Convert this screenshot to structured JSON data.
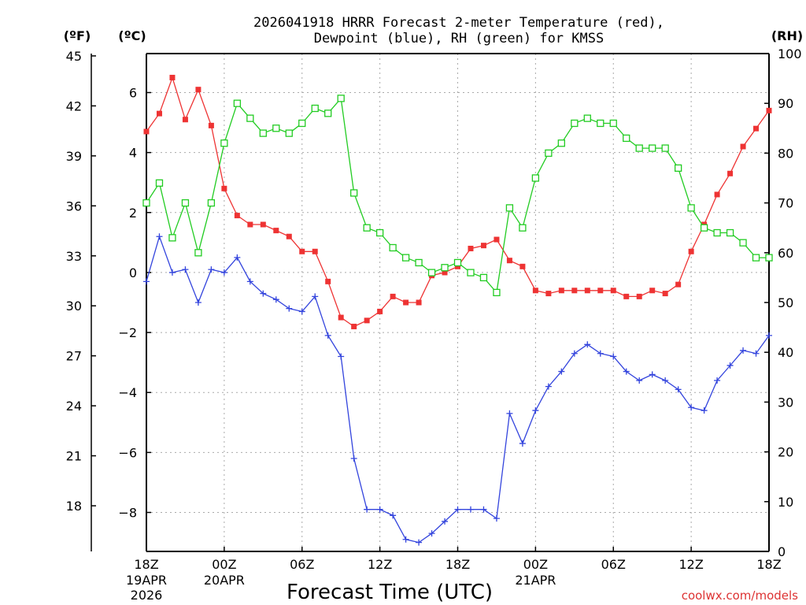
{
  "chart_data": {
    "type": "line",
    "title_line1": "2026041918 HRRR Forecast 2-meter Temperature (red),",
    "title_line2": "Dewpoint (blue), RH (green) for KMSS",
    "xlabel": "Forecast Time (UTC)",
    "watermark": "coolwx.com/models",
    "unit_f": "(ºF)",
    "unit_c": "(ºC)",
    "unit_rh": "(RH)",
    "celsius_range": [
      -9.3,
      7.3
    ],
    "rh_range": [
      0,
      100
    ],
    "celsius_ticks": [
      "6",
      "4",
      "2",
      "0",
      "−2",
      "−4",
      "−6",
      "−8"
    ],
    "celsius_tick_values": [
      6,
      4,
      2,
      0,
      -2,
      -4,
      -6,
      -8
    ],
    "fahrenheit_ticks": [
      "45",
      "42",
      "39",
      "36",
      "33",
      "30",
      "27",
      "24",
      "21",
      "18"
    ],
    "fahrenheit_tick_values": [
      45,
      42,
      39,
      36,
      33,
      30,
      27,
      24,
      21,
      18
    ],
    "rh_ticks": [
      "100",
      "90",
      "80",
      "70",
      "60",
      "50",
      "40",
      "30",
      "20",
      "10",
      "0"
    ],
    "rh_tick_values": [
      100,
      90,
      80,
      70,
      60,
      50,
      40,
      30,
      20,
      10,
      0
    ],
    "x_ticks": [
      {
        "hour": 0,
        "label": "18Z",
        "sub1": "19APR",
        "sub2": "2026"
      },
      {
        "hour": 6,
        "label": "00Z",
        "sub1": "20APR",
        "sub2": ""
      },
      {
        "hour": 12,
        "label": "06Z",
        "sub1": "",
        "sub2": ""
      },
      {
        "hour": 18,
        "label": "12Z",
        "sub1": "",
        "sub2": ""
      },
      {
        "hour": 24,
        "label": "18Z",
        "sub1": "",
        "sub2": ""
      },
      {
        "hour": 30,
        "label": "00Z",
        "sub1": "21APR",
        "sub2": ""
      },
      {
        "hour": 36,
        "label": "06Z",
        "sub1": "",
        "sub2": ""
      },
      {
        "hour": 42,
        "label": "12Z",
        "sub1": "",
        "sub2": ""
      },
      {
        "hour": 48,
        "label": "18Z",
        "sub1": "",
        "sub2": ""
      }
    ],
    "x_range_hours": [
      0,
      48
    ],
    "series": [
      {
        "name": "Temperature",
        "units": "C",
        "color": "#ee3333",
        "marker": "filled-square",
        "values": [
          4.7,
          5.3,
          6.5,
          5.1,
          6.1,
          4.9,
          2.8,
          1.9,
          1.6,
          1.6,
          1.4,
          1.2,
          0.7,
          0.7,
          -0.3,
          -1.5,
          -1.8,
          -1.6,
          -1.3,
          -0.8,
          -1.0,
          -1.0,
          -0.1,
          0.0,
          0.2,
          0.8,
          0.9,
          1.1,
          0.4,
          0.2,
          -0.6,
          -0.7,
          -0.6,
          -0.6,
          -0.6,
          -0.6,
          -0.6,
          -0.8,
          -0.8,
          -0.6,
          -0.7,
          -0.4,
          0.7,
          1.6,
          2.6,
          3.3,
          4.2,
          4.8,
          5.4
        ]
      },
      {
        "name": "Dewpoint",
        "units": "C",
        "color": "#3344dd",
        "marker": "plus",
        "values": [
          -0.3,
          1.2,
          0.0,
          0.1,
          -1.0,
          0.1,
          0.0,
          0.5,
          -0.3,
          -0.7,
          -0.9,
          -1.2,
          -1.3,
          -0.8,
          -2.1,
          -2.8,
          -6.2,
          -7.9,
          -7.9,
          -8.1,
          -8.9,
          -9.0,
          -8.7,
          -8.3,
          -7.9,
          -7.9,
          -7.9,
          -8.2,
          -4.7,
          -5.7,
          -4.6,
          -3.8,
          -3.3,
          -2.7,
          -2.4,
          -2.7,
          -2.8,
          -3.3,
          -3.6,
          -3.4,
          -3.6,
          -3.9,
          -4.5,
          -4.6,
          -3.6,
          -3.1,
          -2.6,
          -2.7,
          -2.1
        ]
      },
      {
        "name": "RH",
        "units": "%",
        "color": "#22cc22",
        "marker": "open-square",
        "values": [
          70,
          74,
          63,
          70,
          60,
          70,
          82,
          90,
          87,
          84,
          85,
          84,
          86,
          89,
          88,
          91,
          72,
          65,
          64,
          61,
          59,
          58,
          56,
          57,
          58,
          56,
          55,
          52,
          69,
          65,
          75,
          80,
          82,
          86,
          87,
          86,
          86,
          83,
          81,
          81,
          81,
          77,
          69,
          65,
          64,
          64,
          62,
          59,
          59
        ]
      }
    ]
  }
}
